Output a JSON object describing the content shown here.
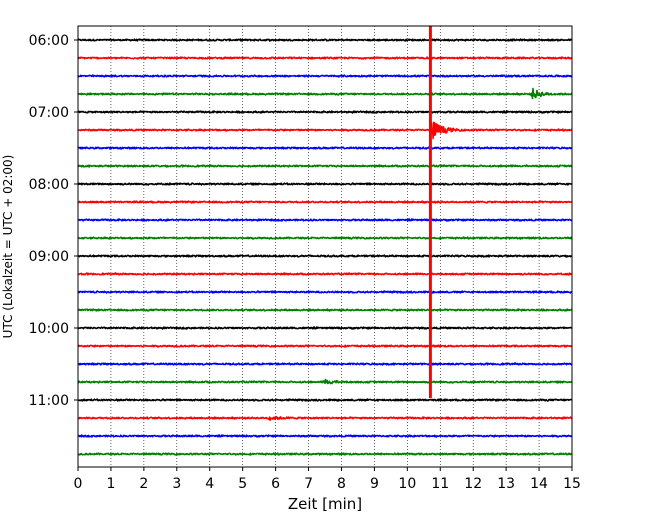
{
  "chart_data": {
    "type": "line",
    "title": "",
    "xlabel": "Zeit  [min]",
    "ylabel": "UTC (Lokalzeit = UTC + 02:00)",
    "xlim": [
      0,
      15
    ],
    "x_ticks": [
      "0",
      "1",
      "2",
      "3",
      "4",
      "5",
      "6",
      "7",
      "8",
      "9",
      "10",
      "11",
      "12",
      "13",
      "14",
      "15"
    ],
    "y_ticks": [
      "06:00",
      "07:00",
      "08:00",
      "09:00",
      "10:00",
      "11:00"
    ],
    "trace_interval_min": 15,
    "first_trace": "06:00",
    "last_trace": "11:45",
    "trace_colors_cycle": [
      "#000000",
      "#ff0000",
      "#0000ff",
      "#008000"
    ],
    "grid_x": "dotted vertical lines at each minute",
    "legend": "none",
    "series": [
      {
        "trace_start": "06:00",
        "color": "#000000",
        "base_amplitude": 0.08
      },
      {
        "trace_start": "06:15",
        "color": "#ff0000",
        "base_amplitude": 0.08
      },
      {
        "trace_start": "06:30",
        "color": "#0000ff",
        "base_amplitude": 0.08
      },
      {
        "trace_start": "06:45",
        "color": "#008000",
        "base_amplitude": 0.08,
        "events": [
          {
            "t_min": 13.8,
            "peak_amplitude": 0.55
          }
        ]
      },
      {
        "trace_start": "07:00",
        "color": "#000000",
        "base_amplitude": 0.08
      },
      {
        "trace_start": "07:15",
        "color": "#ff0000",
        "base_amplitude": 0.08,
        "events": [
          {
            "t_min": 10.75,
            "peak_amplitude": 1.2
          }
        ]
      },
      {
        "trace_start": "07:30",
        "color": "#0000ff",
        "base_amplitude": 0.08
      },
      {
        "trace_start": "07:45",
        "color": "#008000",
        "base_amplitude": 0.08
      },
      {
        "trace_start": "08:00",
        "color": "#000000",
        "base_amplitude": 0.08
      },
      {
        "trace_start": "08:15",
        "color": "#ff0000",
        "base_amplitude": 0.08
      },
      {
        "trace_start": "08:30",
        "color": "#0000ff",
        "base_amplitude": 0.08
      },
      {
        "trace_start": "08:45",
        "color": "#008000",
        "base_amplitude": 0.08
      },
      {
        "trace_start": "09:00",
        "color": "#000000",
        "base_amplitude": 0.08
      },
      {
        "trace_start": "09:15",
        "color": "#ff0000",
        "base_amplitude": 0.08
      },
      {
        "trace_start": "09:30",
        "color": "#0000ff",
        "base_amplitude": 0.08
      },
      {
        "trace_start": "09:45",
        "color": "#008000",
        "base_amplitude": 0.08
      },
      {
        "trace_start": "10:00",
        "color": "#000000",
        "base_amplitude": 0.08
      },
      {
        "trace_start": "10:15",
        "color": "#ff0000",
        "base_amplitude": 0.08
      },
      {
        "trace_start": "10:30",
        "color": "#0000ff",
        "base_amplitude": 0.08
      },
      {
        "trace_start": "10:45",
        "color": "#008000",
        "base_amplitude": 0.08,
        "events": [
          {
            "t_min": 7.5,
            "peak_amplitude": 0.25
          }
        ]
      },
      {
        "trace_start": "11:00",
        "color": "#000000",
        "base_amplitude": 0.08
      },
      {
        "trace_start": "11:15",
        "color": "#ff0000",
        "base_amplitude": 0.08,
        "events": [
          {
            "t_min": 5.8,
            "peak_amplitude": 0.22
          }
        ]
      },
      {
        "trace_start": "11:30",
        "color": "#0000ff",
        "base_amplitude": 0.08
      },
      {
        "trace_start": "11:45",
        "color": "#008000",
        "base_amplitude": 0.08
      }
    ],
    "vertical_event_line": {
      "t_min": 10.7,
      "color": "#ff0000",
      "from_trace": "06:00",
      "to_trace": "11:00"
    }
  }
}
